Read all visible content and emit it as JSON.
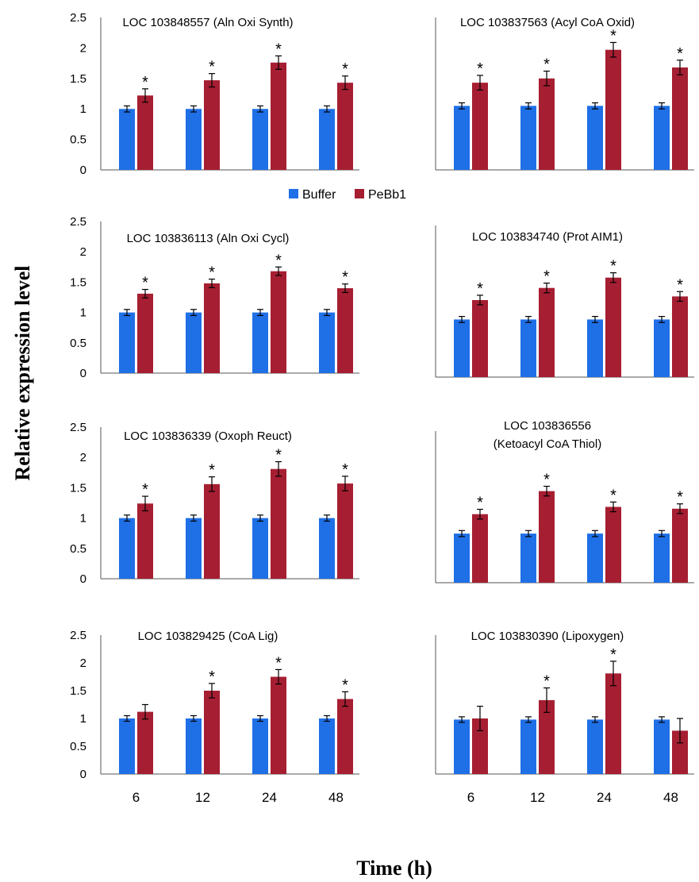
{
  "figure": {
    "ylabel": "Relative expression level",
    "xlabel": "Time (h)",
    "legend": [
      {
        "label": "Buffer",
        "color": "#1f6fe6"
      },
      {
        "label": "PeBb1",
        "color": "#a61e32"
      }
    ]
  },
  "chart_data": [
    {
      "type": "bar",
      "title": [
        "LOC 103848557 (Aln Oxi Synth)"
      ],
      "categories": [
        "6",
        "12",
        "24",
        "48"
      ],
      "series": [
        {
          "name": "Buffer",
          "values": [
            1,
            1,
            1,
            1
          ],
          "errors": [
            0.05,
            0.05,
            0.05,
            0.05
          ]
        },
        {
          "name": "PeBb1",
          "values": [
            1.22,
            1.47,
            1.76,
            1.43
          ],
          "errors": [
            0.11,
            0.11,
            0.11,
            0.11
          ]
        }
      ],
      "significant": [
        true,
        true,
        true,
        true
      ],
      "ylim": [
        0,
        2.5
      ],
      "yticks": [
        "0",
        "0.5",
        "1",
        "1.5",
        "2",
        "2.5"
      ],
      "show_yticks": true,
      "show_xticks": false
    },
    {
      "type": "bar",
      "title": [
        "LOC 103837563 (Acyl CoA Oxid)"
      ],
      "categories": [
        "6",
        "12",
        "24",
        "48"
      ],
      "series": [
        {
          "name": "Buffer",
          "values": [
            1.05,
            1.05,
            1.05,
            1.05
          ],
          "errors": [
            0.05,
            0.05,
            0.05,
            0.05
          ]
        },
        {
          "name": "PeBb1",
          "values": [
            1.43,
            1.5,
            1.97,
            1.68
          ],
          "errors": [
            0.12,
            0.12,
            0.12,
            0.12
          ]
        }
      ],
      "significant": [
        true,
        true,
        true,
        true
      ],
      "ylim": [
        0,
        2.5
      ],
      "show_yticks": false,
      "show_xticks": false
    },
    {
      "type": "bar",
      "title": [
        "LOC 103836113 (Aln Oxi Cycl)"
      ],
      "categories": [
        "6",
        "12",
        "24",
        "48"
      ],
      "series": [
        {
          "name": "Buffer",
          "values": [
            1,
            1,
            1,
            1
          ],
          "errors": [
            0.05,
            0.05,
            0.05,
            0.05
          ]
        },
        {
          "name": "PeBb1",
          "values": [
            1.31,
            1.48,
            1.68,
            1.4
          ],
          "errors": [
            0.07,
            0.07,
            0.07,
            0.07
          ]
        }
      ],
      "significant": [
        true,
        true,
        true,
        true
      ],
      "ylim": [
        0,
        2.5
      ],
      "yticks": [
        "0",
        "0.5",
        "1",
        "1.5",
        "2",
        "2.5"
      ],
      "show_yticks": true,
      "show_xticks": false
    },
    {
      "type": "bar",
      "title": [
        "LOC 103834740 (Prot AIM1)"
      ],
      "categories": [
        "6",
        "12",
        "24",
        "48"
      ],
      "series": [
        {
          "name": "Buffer",
          "values": [
            0.95,
            0.95,
            0.95,
            0.95
          ],
          "errors": [
            0.05,
            0.05,
            0.05,
            0.05
          ]
        },
        {
          "name": "PeBb1",
          "values": [
            1.27,
            1.47,
            1.64,
            1.33
          ],
          "errors": [
            0.08,
            0.08,
            0.08,
            0.08
          ]
        }
      ],
      "significant": [
        true,
        true,
        true,
        true
      ],
      "ylim": [
        0,
        2.5
      ],
      "show_yticks": false,
      "show_xticks": false
    },
    {
      "type": "bar",
      "title": [
        "LOC 103836339 (Oxoph Reuct)"
      ],
      "categories": [
        "6",
        "12",
        "24",
        "48"
      ],
      "series": [
        {
          "name": "Buffer",
          "values": [
            1,
            1,
            1,
            1
          ],
          "errors": [
            0.05,
            0.05,
            0.05,
            0.05
          ]
        },
        {
          "name": "PeBb1",
          "values": [
            1.24,
            1.56,
            1.81,
            1.57
          ],
          "errors": [
            0.12,
            0.12,
            0.12,
            0.12
          ]
        }
      ],
      "significant": [
        true,
        true,
        true,
        true
      ],
      "ylim": [
        0,
        2.5
      ],
      "yticks": [
        "0",
        "0.5",
        "1",
        "1.5",
        "2",
        "2.5"
      ],
      "show_yticks": true,
      "show_xticks": false
    },
    {
      "type": "bar",
      "title": [
        "LOC 103836556",
        "(Ketoacyl CoA Thiol)"
      ],
      "categories": [
        "6",
        "12",
        "24",
        "48"
      ],
      "series": [
        {
          "name": "Buffer",
          "values": [
            0.81,
            0.81,
            0.81,
            0.81
          ],
          "errors": [
            0.05,
            0.05,
            0.05,
            0.05
          ]
        },
        {
          "name": "PeBb1",
          "values": [
            1.13,
            1.51,
            1.25,
            1.22
          ],
          "errors": [
            0.08,
            0.08,
            0.08,
            0.08
          ]
        }
      ],
      "significant": [
        true,
        true,
        true,
        true
      ],
      "ylim": [
        0,
        2.5
      ],
      "show_yticks": false,
      "show_xticks": false
    },
    {
      "type": "bar",
      "title": [
        "LOC 103829425 (CoA Lig)"
      ],
      "categories": [
        "6",
        "12",
        "24",
        "48"
      ],
      "series": [
        {
          "name": "Buffer",
          "values": [
            1,
            1,
            1,
            1
          ],
          "errors": [
            0.05,
            0.05,
            0.05,
            0.05
          ]
        },
        {
          "name": "PeBb1",
          "values": [
            1.12,
            1.5,
            1.75,
            1.35
          ],
          "errors": [
            0.13,
            0.13,
            0.13,
            0.13
          ]
        }
      ],
      "significant": [
        false,
        true,
        true,
        true
      ],
      "ylim": [
        0,
        2.5
      ],
      "yticks": [
        "0",
        "0.5",
        "1",
        "1.5",
        "2",
        "2.5"
      ],
      "show_yticks": true,
      "show_xticks": true
    },
    {
      "type": "bar",
      "title": [
        "LOC 103830390 (Lipoxygen)"
      ],
      "categories": [
        "6",
        "12",
        "24",
        "48"
      ],
      "series": [
        {
          "name": "Buffer",
          "values": [
            0.98,
            0.98,
            0.98,
            0.98
          ],
          "errors": [
            0.05,
            0.05,
            0.05,
            0.05
          ]
        },
        {
          "name": "PeBb1",
          "values": [
            1.0,
            1.33,
            1.81,
            0.78
          ],
          "errors": [
            0.22,
            0.22,
            0.22,
            0.22
          ]
        }
      ],
      "significant": [
        false,
        true,
        true,
        false
      ],
      "ylim": [
        0,
        2.5
      ],
      "show_yticks": false,
      "show_xticks": true
    }
  ]
}
